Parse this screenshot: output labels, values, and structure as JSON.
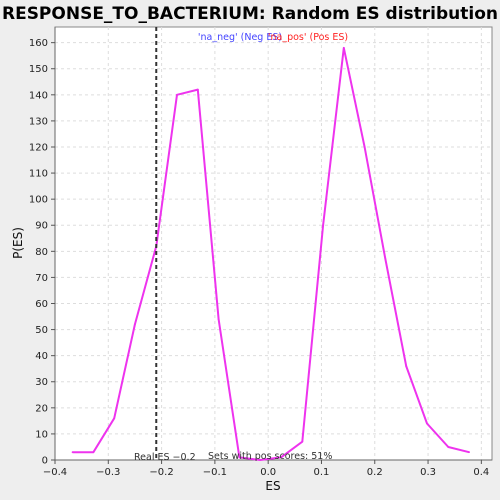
{
  "chart_data": {
    "type": "line",
    "title": "RESPONSE_TO_BACTERIUM: Random ES distribution",
    "xlabel": "ES",
    "ylabel": "P(ES)",
    "xlim": [
      -0.4,
      0.42
    ],
    "ylim": [
      0,
      166
    ],
    "xticks": [
      -0.4,
      -0.3,
      -0.2,
      -0.1,
      0.0,
      0.1,
      0.2,
      0.3,
      0.4
    ],
    "xtick_labels": [
      "−0.4",
      "−0.3",
      "−0.2",
      "−0.1",
      "0.0",
      "0.1",
      "0.2",
      "0.3",
      "0.4"
    ],
    "yticks": [
      0,
      10,
      20,
      30,
      40,
      50,
      60,
      70,
      80,
      90,
      100,
      110,
      120,
      130,
      140,
      150,
      160
    ],
    "ytick_labels": [
      "0",
      "10",
      "20",
      "30",
      "40",
      "50",
      "60",
      "70",
      "80",
      "90",
      "100",
      "110",
      "120",
      "130",
      "140",
      "150",
      "160"
    ],
    "grid": true,
    "series": [
      {
        "color": "#ee33ee",
        "x": [
          -0.367,
          -0.328,
          -0.289,
          -0.25,
          -0.21,
          -0.171,
          -0.132,
          -0.093,
          -0.054,
          -0.015,
          0.024,
          0.064,
          0.103,
          0.142,
          0.181,
          0.22,
          0.259,
          0.298,
          0.338,
          0.377
        ],
        "y": [
          3,
          3,
          16,
          52,
          82,
          140,
          142,
          54,
          1,
          0,
          1,
          7,
          90,
          158,
          120,
          77,
          36,
          14,
          5,
          3
        ]
      }
    ],
    "vline": {
      "x": -0.21,
      "style": "dashed",
      "color": "#333333"
    },
    "annotations": {
      "neg_label": "'na_neg' (Neg ES)",
      "neg_color": "#4444ff",
      "pos_label": "'na_pos' (Pos ES)",
      "pos_color": "#ff2222",
      "real_es": "Real ES −0.2",
      "pos_scores": "Sets with pos scores: 51%"
    }
  }
}
